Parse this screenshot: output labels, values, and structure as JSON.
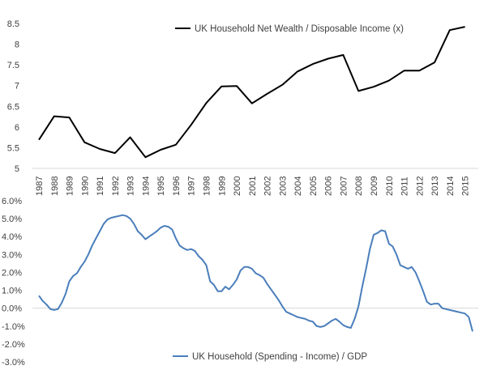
{
  "chart_data": [
    {
      "type": "line",
      "title": "",
      "xlabel": "",
      "ylabel": "",
      "legend_position": "top",
      "grid": false,
      "x_tick_labels": [
        "1987",
        "1988",
        "1989",
        "1990",
        "1991",
        "1992",
        "1993",
        "1994",
        "1995",
        "1996",
        "1997",
        "1998",
        "1999",
        "2000",
        "2001",
        "2002",
        "2003",
        "2004",
        "2005",
        "2006",
        "2007",
        "2008",
        "2009",
        "2010",
        "2011",
        "2012",
        "2013",
        "2014",
        "2015"
      ],
      "y_tick_labels": [
        "5",
        "5.5",
        "6",
        "6.5",
        "7",
        "7.5",
        "8",
        "8.5"
      ],
      "ylim": [
        5,
        8.5
      ],
      "series": [
        {
          "name": "UK Household Net Wealth / Disposable Income (x)",
          "color": "#000000",
          "x": [
            1987,
            1988,
            1989,
            1990,
            1991,
            1992,
            1993,
            1994,
            1995,
            1996,
            1997,
            1998,
            1999,
            2000,
            2001,
            2002,
            2003,
            2004,
            2005,
            2006,
            2007,
            2008,
            2009,
            2010,
            2011,
            2012,
            2013,
            2014,
            2015
          ],
          "values": [
            5.69,
            6.26,
            6.23,
            5.63,
            5.47,
            5.37,
            5.75,
            5.27,
            5.45,
            5.57,
            6.05,
            6.58,
            6.98,
            6.99,
            6.57,
            6.8,
            7.02,
            7.34,
            7.52,
            7.65,
            7.74,
            6.87,
            6.97,
            7.12,
            7.36,
            7.36,
            7.56,
            8.34,
            8.42
          ]
        }
      ]
    },
    {
      "type": "line",
      "title": "",
      "xlabel": "",
      "ylabel": "",
      "legend_position": "bottom",
      "grid": false,
      "y_tick_labels": [
        "-3.0%",
        "-2.0%",
        "-1.0%",
        "0.0%",
        "1.0%",
        "2.0%",
        "3.0%",
        "4.0%",
        "5.0%",
        "6.0%"
      ],
      "ylim": [
        -3.0,
        6.0
      ],
      "series": [
        {
          "name": "UK Household (Spending - Income) / GDP",
          "color": "#4a7ebb",
          "x": [
            1987.0,
            1987.25,
            1987.5,
            1987.75,
            1988.0,
            1988.25,
            1988.5,
            1988.75,
            1989.0,
            1989.25,
            1989.5,
            1989.75,
            1990.0,
            1990.25,
            1990.5,
            1990.75,
            1991.0,
            1991.25,
            1991.5,
            1991.75,
            1992.0,
            1992.25,
            1992.5,
            1992.75,
            1993.0,
            1993.25,
            1993.5,
            1993.75,
            1994.0,
            1994.25,
            1994.5,
            1994.75,
            1995.0,
            1995.25,
            1995.5,
            1995.75,
            1996.0,
            1996.25,
            1996.5,
            1996.75,
            1997.0,
            1997.25,
            1997.5,
            1997.75,
            1998.0,
            1998.25,
            1998.5,
            1998.75,
            1999.0,
            1999.25,
            1999.5,
            1999.75,
            2000.0,
            2000.25,
            2000.5,
            2000.75,
            2001.0,
            2001.25,
            2001.5,
            2001.75,
            2002.0,
            2002.25,
            2002.5,
            2002.75,
            2003.0,
            2003.25,
            2003.5,
            2003.75,
            2004.0,
            2004.25,
            2004.5,
            2004.75,
            2005.0,
            2005.25,
            2005.5,
            2005.75,
            2006.0,
            2006.25,
            2006.5,
            2006.75,
            2007.0,
            2007.25,
            2007.5,
            2007.75,
            2008.0,
            2008.25,
            2008.5,
            2008.75,
            2009.0,
            2009.25,
            2009.5,
            2009.75,
            2010.0,
            2010.25,
            2010.5,
            2010.75,
            2011.0,
            2011.25,
            2011.5,
            2011.75,
            2012.0,
            2012.25,
            2012.5,
            2012.75,
            2013.0,
            2013.25,
            2013.5,
            2013.75,
            2014.0,
            2014.25,
            2014.5,
            2014.75,
            2015.0,
            2015.25,
            2015.5
          ],
          "values": [
            0.7,
            0.4,
            0.2,
            -0.05,
            -0.1,
            -0.05,
            0.3,
            0.8,
            1.5,
            1.8,
            1.95,
            2.3,
            2.6,
            3.0,
            3.5,
            3.9,
            4.3,
            4.7,
            4.95,
            5.05,
            5.1,
            5.15,
            5.2,
            5.15,
            5.0,
            4.7,
            4.3,
            4.1,
            3.85,
            4.0,
            4.15,
            4.3,
            4.5,
            4.6,
            4.55,
            4.4,
            3.9,
            3.5,
            3.35,
            3.25,
            3.3,
            3.2,
            2.9,
            2.7,
            2.4,
            1.5,
            1.3,
            0.95,
            0.95,
            1.2,
            1.05,
            1.3,
            1.6,
            2.1,
            2.3,
            2.3,
            2.2,
            1.95,
            1.85,
            1.7,
            1.35,
            1.05,
            0.75,
            0.45,
            0.1,
            -0.2,
            -0.3,
            -0.4,
            -0.5,
            -0.55,
            -0.6,
            -0.7,
            -0.75,
            -1.0,
            -1.05,
            -1.0,
            -0.85,
            -0.7,
            -0.6,
            -0.75,
            -0.95,
            -1.05,
            -1.1,
            -0.6,
            0.1,
            1.2,
            2.2,
            3.3,
            4.1,
            4.2,
            4.35,
            4.3,
            3.6,
            3.45,
            3.0,
            2.4,
            2.3,
            2.2,
            2.3,
            2.0,
            1.5,
            0.95,
            0.35,
            0.2,
            0.25,
            0.25,
            0.0,
            -0.05,
            -0.1,
            -0.15,
            -0.2,
            -0.25,
            -0.3,
            -0.5,
            -1.3
          ]
        }
      ]
    }
  ]
}
